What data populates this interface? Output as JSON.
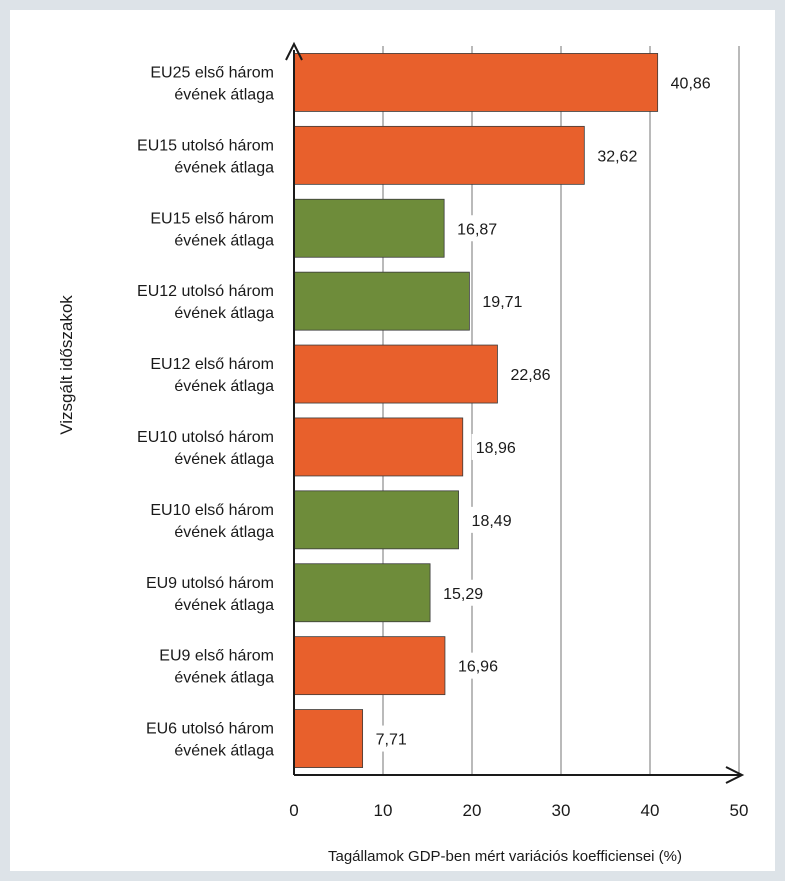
{
  "chart_data": {
    "type": "bar",
    "orientation": "horizontal",
    "categories": [
      [
        "EU25 első három",
        "évének átlaga"
      ],
      [
        "EU15 utolsó három",
        "évének átlaga"
      ],
      [
        "EU15 első három",
        "évének átlaga"
      ],
      [
        "EU12 utolsó három",
        "évének átlaga"
      ],
      [
        "EU12 első három",
        "évének átlaga"
      ],
      [
        "EU10 utolsó három",
        "évének átlaga"
      ],
      [
        "EU10 első három",
        "évének átlaga"
      ],
      [
        "EU9 utolsó három",
        "évének átlaga"
      ],
      [
        "EU9 első három",
        "évének átlaga"
      ],
      [
        "EU6 utolsó három",
        "évének átlaga"
      ]
    ],
    "values": [
      40.86,
      32.62,
      16.87,
      19.71,
      22.86,
      18.96,
      18.49,
      15.29,
      16.96,
      7.71
    ],
    "value_labels": [
      "40,86",
      "32,62",
      "16,87",
      "19,71",
      "22,86",
      "18,96",
      "18,49",
      "15,29",
      "16,96",
      "7,71"
    ],
    "bar_colors": [
      "#e8602c",
      "#e8602c",
      "#6e8c3a",
      "#6e8c3a",
      "#e8602c",
      "#e8602c",
      "#6e8c3a",
      "#6e8c3a",
      "#e8602c",
      "#e8602c"
    ],
    "xlabel": "Tagállamok GDP-ben mért variációs koefficiensei (%)",
    "ylabel": "Vizsgált időszakok",
    "xlim": [
      0,
      50
    ],
    "xticks": [
      0,
      10,
      20,
      30,
      40,
      50
    ],
    "xtick_labels": [
      "0",
      "10",
      "20",
      "30",
      "40",
      "50"
    ],
    "grid": "vertical",
    "legend": "none"
  }
}
